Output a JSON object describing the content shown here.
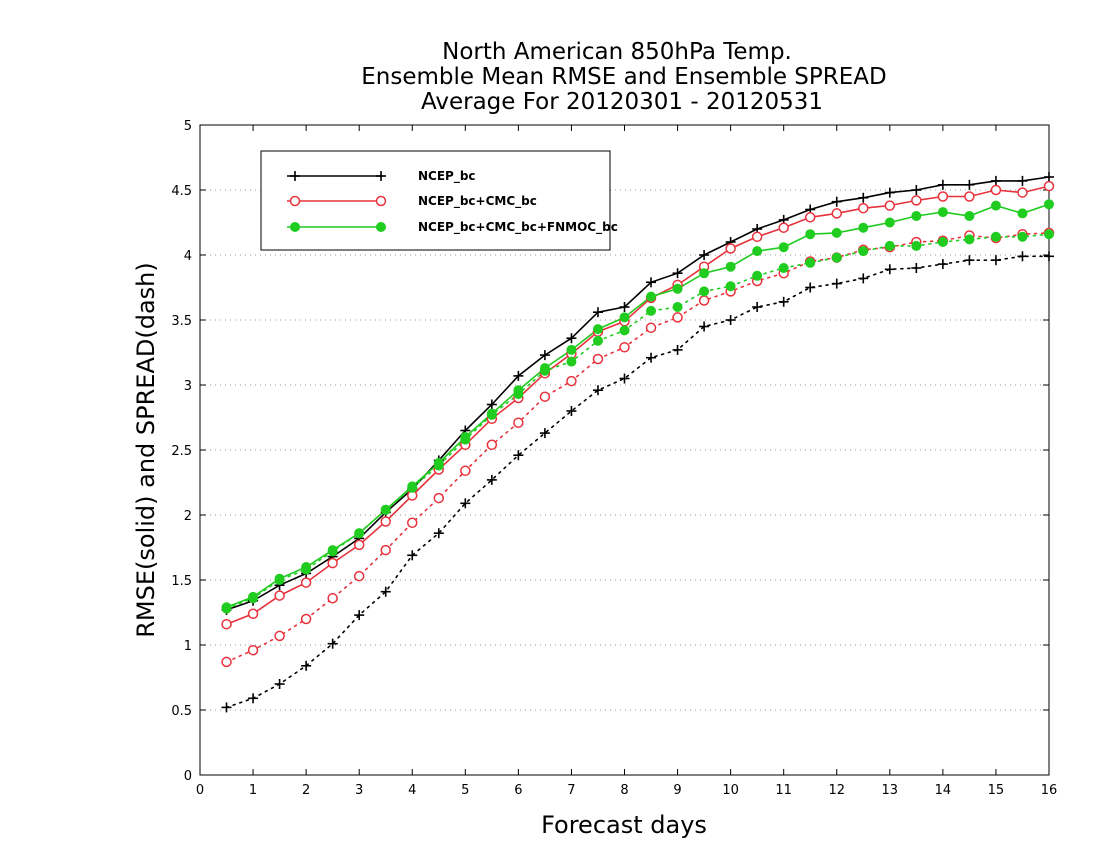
{
  "chart_data": {
    "type": "line",
    "title": [
      "North American 850hPa Temp.",
      "Ensemble Mean RMSE and Ensemble SPREAD",
      "Average For 20120301 - 20120531"
    ],
    "xlabel": "Forecast days",
    "ylabel": "RMSE(solid) and SPREAD(dash)",
    "xlim": [
      0,
      16
    ],
    "ylim": [
      0,
      5
    ],
    "xticks": [
      "0",
      "1",
      "2",
      "3",
      "4",
      "5",
      "6",
      "7",
      "8",
      "9",
      "10",
      "11",
      "12",
      "13",
      "14",
      "15",
      "16"
    ],
    "yticks": [
      "0",
      "0.5",
      "1",
      "1.5",
      "2",
      "2.5",
      "3",
      "3.5",
      "4",
      "4.5",
      "5"
    ],
    "grid": "horizontal dotted",
    "legend_position": "top-left",
    "x": [
      0.5,
      1,
      1.5,
      2,
      2.5,
      3,
      3.5,
      4,
      4.5,
      5,
      5.5,
      6,
      6.5,
      7,
      7.5,
      8,
      8.5,
      9,
      9.5,
      10,
      10.5,
      11,
      11.5,
      12,
      12.5,
      13,
      13.5,
      14,
      14.5,
      15,
      15.5,
      16
    ],
    "series": [
      {
        "name": "NCEP_bc",
        "color": "#000000",
        "marker": "plus",
        "rmse": [
          1.27,
          1.34,
          1.46,
          1.55,
          1.68,
          1.82,
          2.02,
          2.2,
          2.42,
          2.65,
          2.85,
          3.07,
          3.23,
          3.36,
          3.56,
          3.6,
          3.79,
          3.86,
          4.0,
          4.1,
          4.2,
          4.27,
          4.35,
          4.41,
          4.44,
          4.48,
          4.5,
          4.54,
          4.54,
          4.57,
          4.57,
          4.6
        ],
        "spread": [
          0.52,
          0.59,
          0.7,
          0.84,
          1.01,
          1.23,
          1.41,
          1.69,
          1.86,
          2.09,
          2.27,
          2.46,
          2.63,
          2.8,
          2.96,
          3.05,
          3.21,
          3.27,
          3.45,
          3.5,
          3.6,
          3.64,
          3.75,
          3.78,
          3.82,
          3.89,
          3.9,
          3.93,
          3.96,
          3.96,
          3.99,
          3.99
        ]
      },
      {
        "name": "NCEP_bc+CMC_bc",
        "color": "#e8323c",
        "marker": "open-circle",
        "rmse": [
          1.16,
          1.24,
          1.38,
          1.48,
          1.63,
          1.77,
          1.95,
          2.15,
          2.35,
          2.54,
          2.74,
          2.9,
          3.09,
          3.24,
          3.41,
          3.49,
          3.67,
          3.77,
          3.91,
          4.05,
          4.14,
          4.21,
          4.29,
          4.32,
          4.36,
          4.38,
          4.42,
          4.45,
          4.45,
          4.5,
          4.48,
          4.53
        ],
        "spread": [
          0.87,
          0.96,
          1.07,
          1.2,
          1.36,
          1.53,
          1.73,
          1.94,
          2.13,
          2.34,
          2.54,
          2.71,
          2.91,
          3.03,
          3.2,
          3.29,
          3.44,
          3.52,
          3.65,
          3.72,
          3.8,
          3.86,
          3.95,
          3.98,
          4.04,
          4.06,
          4.1,
          4.11,
          4.15,
          4.13,
          4.16,
          4.17
        ]
      },
      {
        "name": "NCEP_bc+CMC_bc+FNMOC_bc",
        "color": "#1fcc1f",
        "marker": "filled-circle",
        "rmse": [
          1.29,
          1.37,
          1.51,
          1.6,
          1.73,
          1.86,
          2.04,
          2.22,
          2.4,
          2.6,
          2.78,
          2.96,
          3.13,
          3.27,
          3.43,
          3.52,
          3.68,
          3.74,
          3.86,
          3.91,
          4.03,
          4.06,
          4.16,
          4.17,
          4.21,
          4.25,
          4.3,
          4.33,
          4.3,
          4.38,
          4.32,
          4.39
        ],
        "spread": [
          1.28,
          1.36,
          1.5,
          1.58,
          1.72,
          1.86,
          2.04,
          2.21,
          2.38,
          2.58,
          2.77,
          2.93,
          3.11,
          3.18,
          3.34,
          3.42,
          3.57,
          3.6,
          3.72,
          3.76,
          3.84,
          3.9,
          3.94,
          3.98,
          4.03,
          4.07,
          4.07,
          4.1,
          4.12,
          4.14,
          4.14,
          4.16
        ]
      }
    ]
  }
}
